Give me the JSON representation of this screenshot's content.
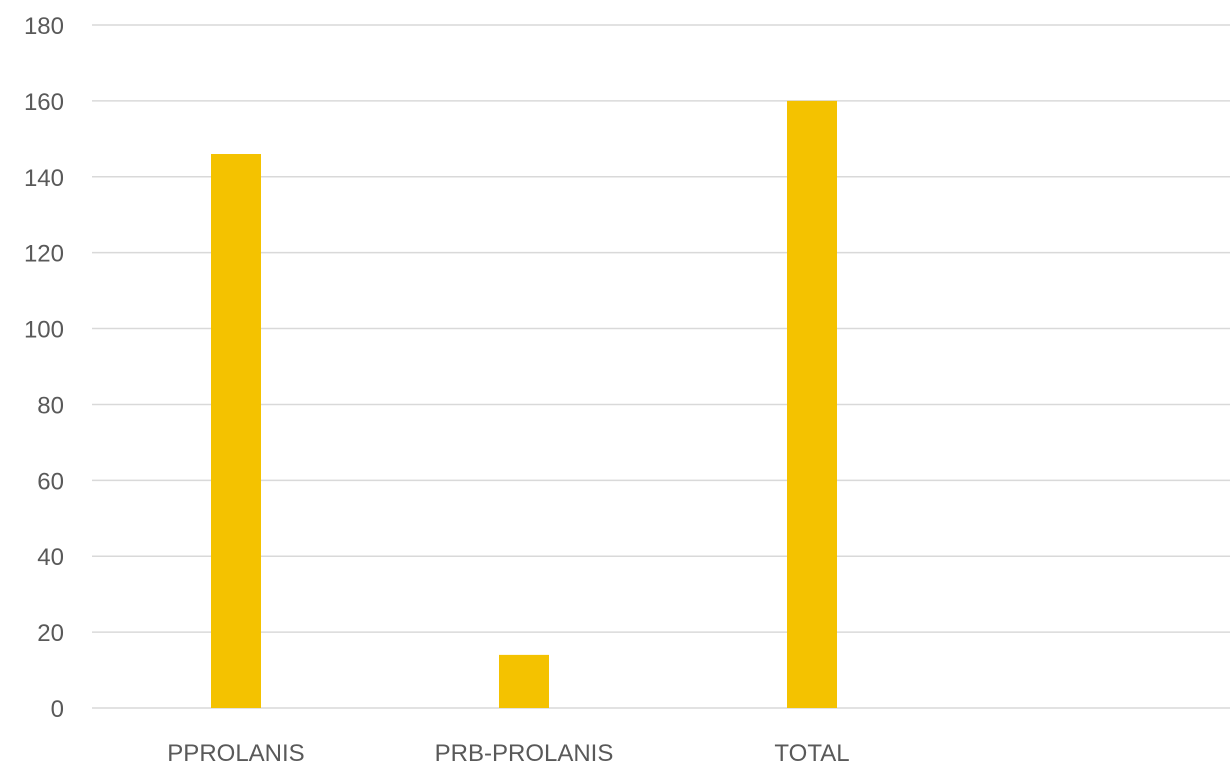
{
  "chart_data": {
    "type": "bar",
    "title": "",
    "xlabel": "",
    "ylabel": "",
    "categories": [
      "PPROLANIS",
      "PRB-PROLANIS",
      "TOTAL"
    ],
    "values": [
      146,
      14,
      160
    ],
    "ylim": [
      0,
      180
    ],
    "y_ticks": [
      0,
      20,
      40,
      60,
      80,
      100,
      120,
      140,
      160,
      180
    ],
    "grid": true,
    "legend": "none",
    "bar_color": "#F4C200",
    "grid_color": "#D9D9D9",
    "label_color": "#595959"
  }
}
